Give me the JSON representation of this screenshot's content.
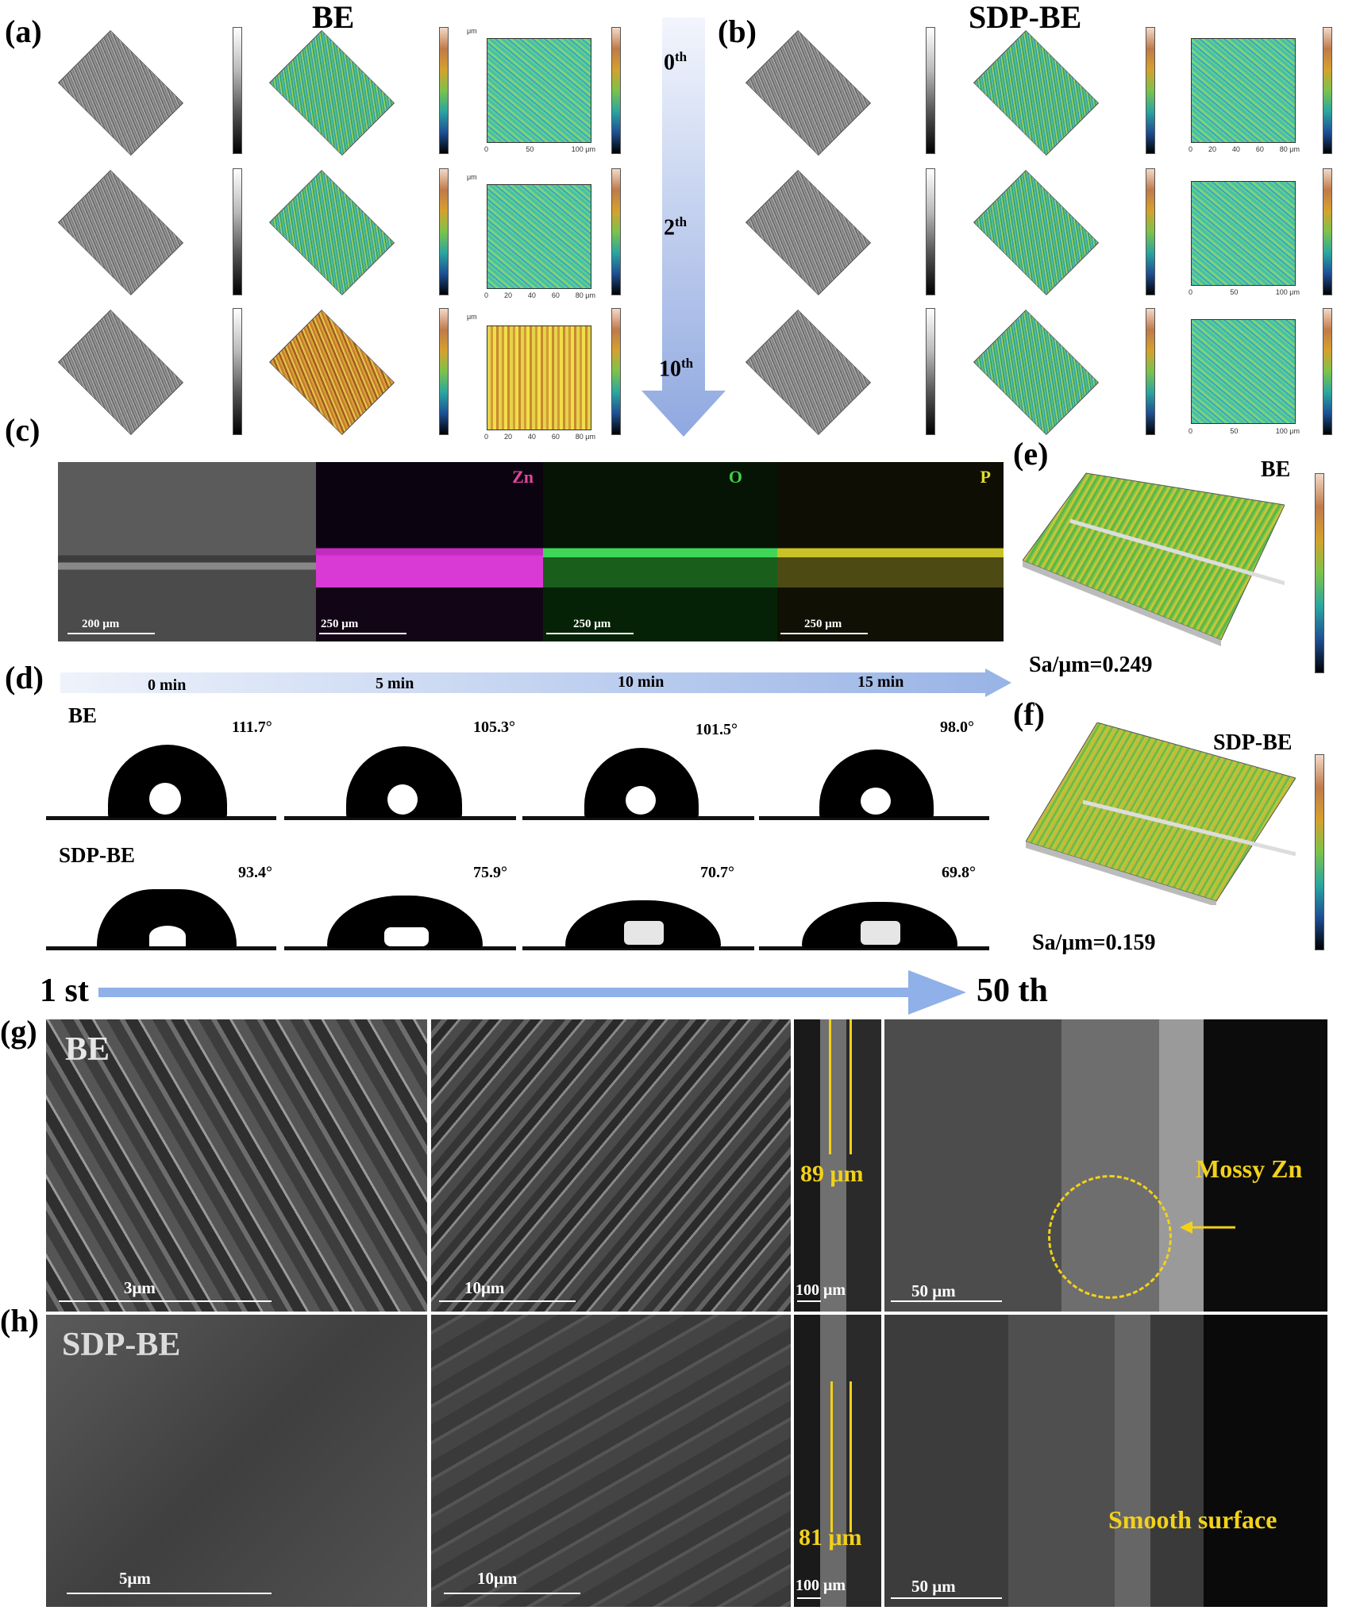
{
  "panel_labels": {
    "a": "(a)",
    "b": "(b)",
    "c": "(c)",
    "d": "(d)",
    "e": "(e)",
    "f": "(f)",
    "g": "(g)",
    "h": "(h)"
  },
  "panel_a": {
    "title": "BE"
  },
  "panel_b": {
    "title": "SDP-BE"
  },
  "cycles": {
    "c0": "0",
    "c2": "2",
    "c10": "10",
    "sup": "th"
  },
  "map_units": "μm",
  "map_ticks_a0": [
    "0",
    "50",
    "100 μm"
  ],
  "map_ticks_a2": [
    "0",
    "20",
    "40",
    "60",
    "80 μm"
  ],
  "map_ticks_a10": [
    "0",
    "20",
    "40",
    "60",
    "80 μm"
  ],
  "map_ticks_b0": [
    "0",
    "20",
    "40",
    "60",
    "80 μm"
  ],
  "map_ticks_b2": [
    "0",
    "50",
    "100 μm"
  ],
  "map_ticks_b10": [
    "0",
    "50",
    "100 μm"
  ],
  "panel_c": {
    "maps": [
      {
        "element": "",
        "scale": "200 μm",
        "color": "#555"
      },
      {
        "element": "Zn",
        "scale": "250 μm",
        "color": "#d22fa0"
      },
      {
        "element": "O",
        "scale": "250 μm",
        "color": "#3fd04a"
      },
      {
        "element": "P",
        "scale": "250 μm",
        "color": "#e0dc2c"
      }
    ]
  },
  "panel_d": {
    "times": [
      "0 min",
      "5 min",
      "10 min",
      "15 min"
    ],
    "be_label": "BE",
    "sdp_label": "SDP-BE",
    "be_angles": [
      "111.7°",
      "105.3°",
      "101.5°",
      "98.0°"
    ],
    "sdp_angles": [
      "93.4°",
      "75.9°",
      "70.7°",
      "69.8°"
    ]
  },
  "panel_e": {
    "title": "BE",
    "sa": "Sa/μm=0.249"
  },
  "panel_f": {
    "title": "SDP-BE",
    "sa": "Sa/μm=0.159"
  },
  "cycle_arrow": {
    "start": "1 st",
    "end": "50 th"
  },
  "panel_g": {
    "title": "BE",
    "scales": [
      "3μm",
      "10μm",
      "100 μm",
      "50 μm"
    ],
    "thickness": "89 μm",
    "annotation": "Mossy Zn"
  },
  "panel_h": {
    "title": "SDP-BE",
    "scales": [
      "5μm",
      "10μm",
      "100 μm",
      "50 μm"
    ],
    "thickness": "81 μm",
    "annotation": "Smooth surface"
  }
}
